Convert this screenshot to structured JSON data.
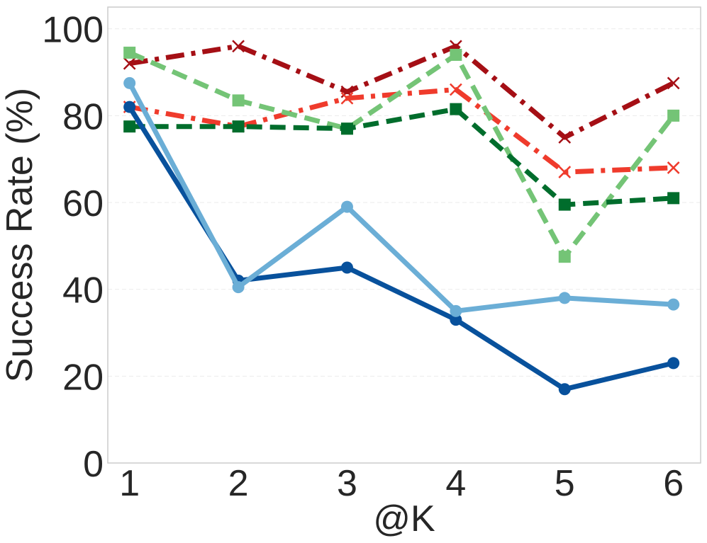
{
  "chart_data": {
    "type": "line",
    "title": "",
    "xlabel": "@K",
    "ylabel": "Success Rate (%)",
    "x": [
      1,
      2,
      3,
      4,
      5,
      6
    ],
    "x_tick_labels": [
      "1",
      "2",
      "3",
      "4",
      "5",
      "6"
    ],
    "y_ticks": [
      0,
      20,
      40,
      60,
      80,
      100
    ],
    "y_tick_labels": [
      "0",
      "20",
      "40",
      "60",
      "80",
      "100"
    ],
    "xlim": [
      0.8,
      6.25
    ],
    "ylim": [
      0,
      105
    ],
    "grid": true,
    "legend": "none",
    "series": [
      {
        "values": [
          92.0,
          96.0,
          85.5,
          96.0,
          75.0,
          87.5
        ],
        "color": "#a50f15",
        "dash": "dashdot",
        "marker": "x"
      },
      {
        "values": [
          82.0,
          77.5,
          84.0,
          86.0,
          67.0,
          68.0
        ],
        "color": "#ef3b2c",
        "dash": "dashdot",
        "marker": "x"
      },
      {
        "values": [
          94.5,
          83.5,
          77.0,
          94.0,
          47.5,
          80.0
        ],
        "color": "#74c476",
        "dash": "dashed",
        "marker": "square"
      },
      {
        "values": [
          77.5,
          77.5,
          77.0,
          81.5,
          59.5,
          61.0
        ],
        "color": "#006d2c",
        "dash": "dashed",
        "marker": "square"
      },
      {
        "values": [
          82.0,
          42.0,
          45.0,
          33.0,
          17.0,
          23.0
        ],
        "color": "#08519c",
        "dash": "solid",
        "marker": "circle"
      },
      {
        "values": [
          87.5,
          40.5,
          59.0,
          35.0,
          38.0,
          36.5
        ],
        "color": "#6baed6",
        "dash": "solid",
        "marker": "circle"
      }
    ]
  }
}
